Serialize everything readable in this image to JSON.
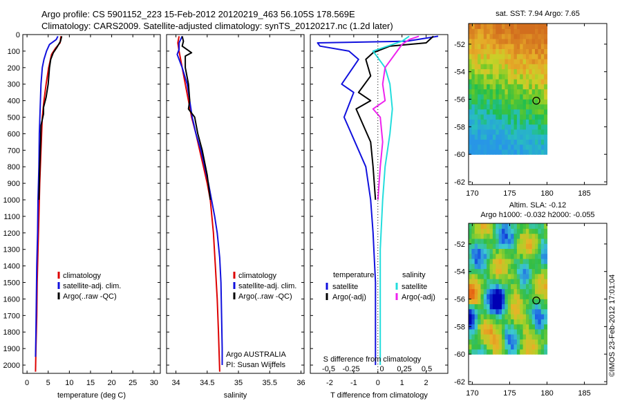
{
  "title_line1": "Argo profile: CS 5901152_223 15-Feb-2012 20120219_463 56.105S 178.569E",
  "title_line2": "Climatology: CARS2009. Satellite-adjusted climatology: synTS_20120217.nc (1.2d later)",
  "watermark": "©IMOS 23-Feb-2012 17:01:04",
  "colors": {
    "red": "#dd0000",
    "blue": "#1010dd",
    "black": "#000000",
    "cyan": "#22dddd",
    "magenta": "#ee22ee"
  },
  "chart_data": [
    {
      "type": "line",
      "id": "temperature",
      "xlabel": "temperature (deg C)",
      "ylim": [
        2050,
        0
      ],
      "xlim": [
        -1,
        31.5
      ],
      "xticks": [
        0,
        5,
        10,
        15,
        20,
        25,
        30
      ],
      "yticks": [
        0,
        100,
        200,
        300,
        400,
        500,
        600,
        700,
        800,
        900,
        1000,
        1100,
        1200,
        1300,
        1400,
        1500,
        1600,
        1700,
        1800,
        1900,
        2000
      ],
      "legend": [
        "climatology",
        "satellite-adj. clim.",
        "Argo(..raw -QC)"
      ],
      "series": [
        {
          "name": "climatology",
          "color": "red",
          "points": [
            [
              8.0,
              10
            ],
            [
              7.8,
              50
            ],
            [
              6.8,
              80
            ],
            [
              5.8,
              120
            ],
            [
              5.1,
              200
            ],
            [
              4.5,
              300
            ],
            [
              4.0,
              400
            ],
            [
              3.6,
              500
            ],
            [
              3.3,
              700
            ],
            [
              3.0,
              900
            ],
            [
              2.8,
              1100
            ],
            [
              2.6,
              1300
            ],
            [
              2.4,
              1500
            ],
            [
              2.3,
              1700
            ],
            [
              2.1,
              1900
            ],
            [
              2.0,
              2040
            ]
          ]
        },
        {
          "name": "satellite-adj. clim.",
          "color": "blue",
          "points": [
            [
              7.3,
              10
            ],
            [
              6.9,
              30
            ],
            [
              5.3,
              60
            ],
            [
              4.6,
              100
            ],
            [
              4.0,
              150
            ],
            [
              3.6,
              200
            ],
            [
              3.3,
              300
            ],
            [
              3.1,
              450
            ],
            [
              2.9,
              600
            ],
            [
              2.8,
              800
            ],
            [
              2.6,
              1000
            ],
            [
              2.5,
              1200
            ],
            [
              2.3,
              1400
            ],
            [
              2.2,
              1600
            ],
            [
              2.1,
              1800
            ],
            [
              2.0,
              1950
            ]
          ]
        },
        {
          "name": "Argo(..raw -QC)",
          "color": "black",
          "points": [
            [
              8.2,
              10
            ],
            [
              7.9,
              40
            ],
            [
              7.0,
              80
            ],
            [
              6.2,
              110
            ],
            [
              5.6,
              150
            ],
            [
              5.3,
              200
            ],
            [
              5.0,
              300
            ],
            [
              4.5,
              380
            ],
            [
              3.9,
              440
            ],
            [
              3.9,
              480
            ],
            [
              3.3,
              550
            ],
            [
              3.2,
              650
            ],
            [
              3.0,
              800
            ],
            [
              2.9,
              900
            ],
            [
              2.8,
              1000
            ]
          ]
        }
      ]
    },
    {
      "type": "line",
      "id": "salinity",
      "xlabel": "salinity",
      "ylim": [
        2050,
        0
      ],
      "xlim": [
        33.85,
        36.05
      ],
      "xticks": [
        34,
        34.5,
        35,
        35.5,
        36
      ],
      "legend": [
        "climatology",
        "satellite-adj. clim.",
        "Argo(..raw -QC)"
      ],
      "annotation": [
        "Argo AUSTRALIA",
        "PI: Susan Wijffels"
      ],
      "series": [
        {
          "name": "climatology",
          "color": "red",
          "points": [
            [
              34.05,
              10
            ],
            [
              34.03,
              50
            ],
            [
              34.05,
              100
            ],
            [
              34.1,
              200
            ],
            [
              34.15,
              300
            ],
            [
              34.2,
              400
            ],
            [
              34.25,
              500
            ],
            [
              34.32,
              600
            ],
            [
              34.38,
              700
            ],
            [
              34.44,
              800
            ],
            [
              34.5,
              900
            ],
            [
              34.55,
              1000
            ],
            [
              34.6,
              1200
            ],
            [
              34.63,
              1400
            ],
            [
              34.66,
              1600
            ],
            [
              34.68,
              1800
            ],
            [
              34.7,
              2040
            ]
          ]
        },
        {
          "name": "satellite-adj. clim.",
          "color": "blue",
          "points": [
            [
              34.1,
              10
            ],
            [
              34.05,
              50
            ],
            [
              34.05,
              90
            ],
            [
              34.02,
              120
            ],
            [
              34.1,
              200
            ],
            [
              34.18,
              300
            ],
            [
              34.22,
              400
            ],
            [
              34.26,
              500
            ],
            [
              34.32,
              600
            ],
            [
              34.4,
              700
            ],
            [
              34.46,
              800
            ],
            [
              34.52,
              900
            ],
            [
              34.57,
              1000
            ],
            [
              34.62,
              1100
            ],
            [
              34.66,
              1200
            ],
            [
              34.7,
              1350
            ],
            [
              34.72,
              1500
            ],
            [
              34.73,
              1700
            ],
            [
              34.74,
              1900
            ],
            [
              34.74,
              2000
            ]
          ]
        },
        {
          "name": "Argo(..raw -QC)",
          "color": "black",
          "points": [
            [
              34.1,
              10
            ],
            [
              34.12,
              40
            ],
            [
              34.1,
              70
            ],
            [
              34.25,
              110
            ],
            [
              34.15,
              130
            ],
            [
              34.15,
              200
            ],
            [
              34.2,
              300
            ],
            [
              34.22,
              400
            ],
            [
              34.2,
              450
            ],
            [
              34.3,
              500
            ],
            [
              34.35,
              600
            ],
            [
              34.42,
              700
            ],
            [
              34.5,
              850
            ],
            [
              34.55,
              1000
            ]
          ]
        }
      ]
    },
    {
      "type": "line",
      "id": "differences",
      "xlabel": "T difference from climatology",
      "xlabel2": "S difference from climatology",
      "ylim": [
        2050,
        0
      ],
      "xlim": [
        -2.8,
        2.9
      ],
      "xticks": [
        -2,
        -1,
        0,
        1,
        2
      ],
      "xticks2": [
        -0.5,
        -0.25,
        0,
        0.25,
        0.5
      ],
      "legend_headers": [
        "temperature",
        "salinity"
      ],
      "legend_left": [
        "satellite",
        "Argo(-adj)"
      ],
      "legend_right": [
        "satellite",
        "Argo(-adj)"
      ],
      "series": [
        {
          "name": "T satellite",
          "color": "blue",
          "points": [
            [
              2.5,
              10
            ],
            [
              1.2,
              40
            ],
            [
              -2.5,
              50
            ],
            [
              -2.4,
              70
            ],
            [
              -1.2,
              100
            ],
            [
              -0.8,
              150
            ],
            [
              -1.5,
              300
            ],
            [
              -1.0,
              350
            ],
            [
              -1.4,
              500
            ],
            [
              -1.1,
              600
            ],
            [
              -0.5,
              800
            ],
            [
              -0.3,
              1000
            ],
            [
              -0.2,
              1200
            ],
            [
              -0.1,
              1500
            ],
            [
              -0.1,
              1700
            ],
            [
              -0.1,
              2000
            ]
          ]
        },
        {
          "name": "T Argo(-adj)",
          "color": "black",
          "points": [
            [
              2.3,
              10
            ],
            [
              2.0,
              50
            ],
            [
              0.5,
              70
            ],
            [
              -0.2,
              110
            ],
            [
              -0.5,
              150
            ],
            [
              -0.3,
              250
            ],
            [
              -0.8,
              350
            ],
            [
              -0.3,
              400
            ],
            [
              -0.9,
              450
            ],
            [
              -0.6,
              550
            ],
            [
              -0.3,
              650
            ],
            [
              -0.2,
              800
            ],
            [
              -0.1,
              1000
            ]
          ]
        },
        {
          "name": "S satellite",
          "color": "cyan",
          "points": [
            [
              1.3,
              10
            ],
            [
              1.0,
              40
            ],
            [
              -0.2,
              100
            ],
            [
              0.3,
              200
            ],
            [
              0.5,
              300
            ],
            [
              0.6,
              450
            ],
            [
              0.5,
              600
            ],
            [
              0.3,
              800
            ],
            [
              0.2,
              1000
            ],
            [
              0.1,
              1300
            ],
            [
              0.1,
              2000
            ]
          ]
        },
        {
          "name": "S Argo(-adj)",
          "color": "magenta",
          "points": [
            [
              1.7,
              10
            ],
            [
              1.3,
              30
            ],
            [
              1.0,
              60
            ],
            [
              0.8,
              100
            ],
            [
              0.3,
              200
            ],
            [
              0.2,
              300
            ],
            [
              0.3,
              400
            ],
            [
              -0.2,
              450
            ],
            [
              0.1,
              500
            ],
            [
              0.2,
              650
            ],
            [
              0.1,
              800
            ],
            [
              0.0,
              1000
            ]
          ]
        }
      ]
    },
    {
      "type": "heatmap",
      "id": "sst-map",
      "title": "sat. SST: 7.94 Argo: 7.65",
      "xlim": [
        169.5,
        188
      ],
      "ylim": [
        -62.2,
        -50.5
      ],
      "xticks": [
        170,
        175,
        180,
        185
      ],
      "yticks": [
        -52,
        -54,
        -56,
        -58,
        -60,
        -62
      ],
      "data_extent": {
        "lon": [
          169.5,
          180
        ],
        "lat": [
          -60,
          -50.5
        ]
      },
      "marker": {
        "lon": 178.569,
        "lat": -56.105
      }
    },
    {
      "type": "heatmap",
      "id": "sla-map",
      "title": "Altim. SLA: -0.12",
      "subtitle": "Argo h1000: -0.032 h2000: -0.055",
      "xlim": [
        169.5,
        188
      ],
      "ylim": [
        -62.2,
        -50.5
      ],
      "xticks": [
        170,
        175,
        180,
        185
      ],
      "yticks": [
        -52,
        -54,
        -56,
        -58,
        -60,
        -62
      ],
      "data_extent": {
        "lon": [
          169.5,
          180
        ],
        "lat": [
          -60,
          -50.5
        ]
      },
      "marker": {
        "lon": 178.569,
        "lat": -56.105
      }
    }
  ]
}
